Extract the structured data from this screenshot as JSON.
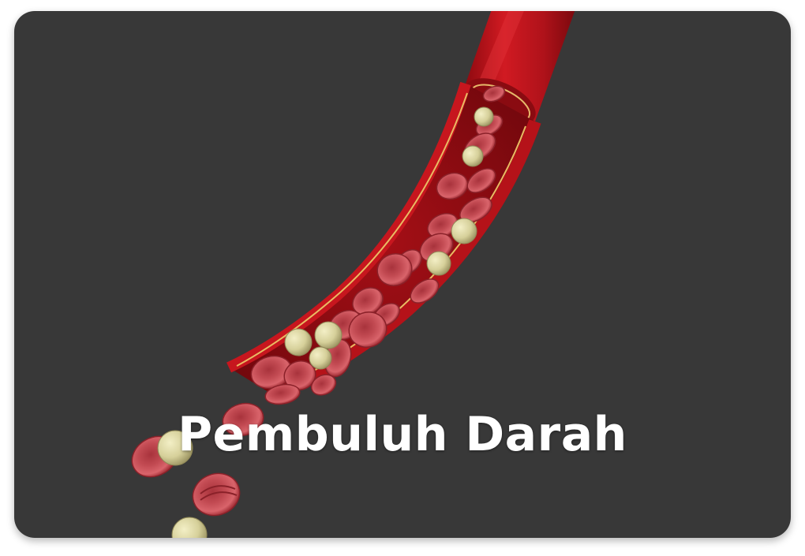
{
  "card": {
    "title": "Pembuluh Darah",
    "background_color": "#383838"
  },
  "illustration": {
    "subject": "blood-vessel-with-blood-cells",
    "vessel_color": "#c0161c",
    "red_cell_color": "#c24a52",
    "white_cell_color": "#d8d3a0"
  }
}
